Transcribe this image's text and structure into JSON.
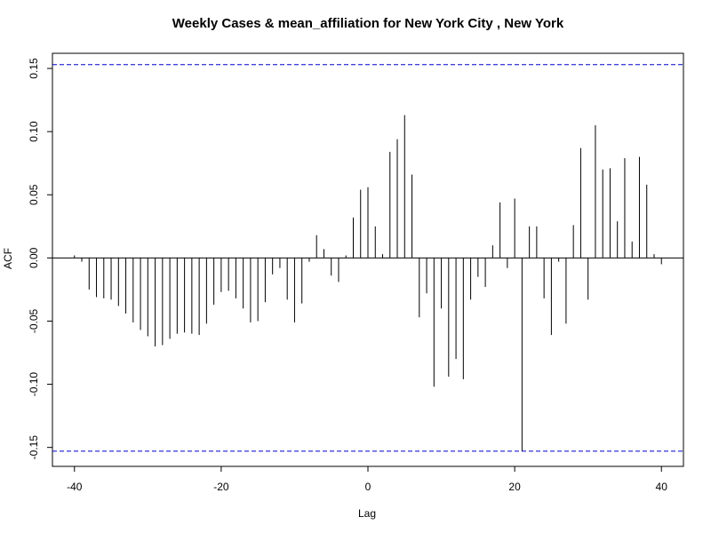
{
  "chart_data": {
    "type": "bar",
    "subtype": "acf-spike",
    "title": "Weekly Cases & mean_affiliation for New York City , New York",
    "xlabel": "Lag",
    "ylabel": "ACF",
    "xlim": [
      -43,
      43
    ],
    "ylim": [
      -0.165,
      0.162
    ],
    "x_ticks": [
      -40,
      -20,
      0,
      20,
      40
    ],
    "y_ticks": [
      -0.15,
      -0.1,
      -0.05,
      0,
      0.05,
      0.1,
      0.15
    ],
    "x_tick_labels": [
      "-40",
      "-20",
      "0",
      "20",
      "40"
    ],
    "y_tick_labels": [
      "-0.15",
      "-0.10",
      "-0.05",
      "0.00",
      "0.05",
      "0.10",
      "0.15"
    ],
    "confidence_bounds": [
      0.153,
      -0.153
    ],
    "confidence_color": "#0000cc",
    "bar_color": "#000000",
    "grid": false,
    "x": [
      -40,
      -39,
      -38,
      -37,
      -36,
      -35,
      -34,
      -33,
      -32,
      -31,
      -30,
      -29,
      -28,
      -27,
      -26,
      -25,
      -24,
      -23,
      -22,
      -21,
      -20,
      -19,
      -18,
      -17,
      -16,
      -15,
      -14,
      -13,
      -12,
      -11,
      -10,
      -9,
      -8,
      -7,
      -6,
      -5,
      -4,
      -3,
      -2,
      -1,
      0,
      1,
      2,
      3,
      4,
      5,
      6,
      7,
      8,
      9,
      10,
      11,
      12,
      13,
      14,
      15,
      16,
      17,
      18,
      19,
      20,
      21,
      22,
      23,
      24,
      25,
      26,
      27,
      28,
      29,
      30,
      31,
      32,
      33,
      34,
      35,
      36,
      37,
      38,
      39,
      40
    ],
    "values": [
      0.002,
      -0.003,
      -0.025,
      -0.031,
      -0.032,
      -0.033,
      -0.038,
      -0.044,
      -0.051,
      -0.057,
      -0.062,
      -0.07,
      -0.069,
      -0.064,
      -0.06,
      -0.059,
      -0.06,
      -0.061,
      -0.052,
      -0.037,
      -0.027,
      -0.026,
      -0.032,
      -0.04,
      -0.051,
      -0.05,
      -0.035,
      -0.013,
      -0.008,
      -0.033,
      -0.051,
      -0.036,
      -0.003,
      0.018,
      0.007,
      -0.014,
      -0.019,
      0.002,
      0.032,
      0.054,
      0.056,
      0.025,
      0.003,
      0.084,
      0.094,
      0.113,
      0.066,
      -0.047,
      -0.028,
      -0.102,
      -0.04,
      -0.094,
      -0.08,
      -0.096,
      -0.033,
      -0.015,
      -0.023,
      0.01,
      0.044,
      -0.008,
      0.047,
      -0.153,
      0.025,
      0.025,
      -0.032,
      -0.061,
      -0.003,
      -0.052,
      0.026,
      0.087,
      -0.033,
      0.105,
      0.07,
      0.071,
      0.029,
      0.079,
      0.013,
      0.08,
      0.058,
      0.003,
      -0.005
    ]
  }
}
